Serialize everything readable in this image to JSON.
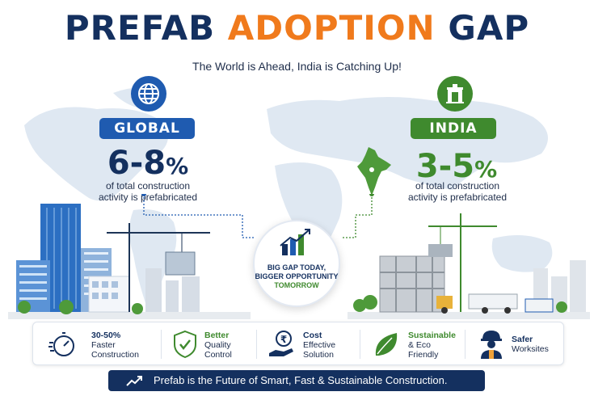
{
  "header": {
    "title_part1": "PREFAB",
    "title_part2": "ADOPTION",
    "title_part3": "GAP",
    "subtitle": "The World is Ahead, India is Catching Up!"
  },
  "global": {
    "label": "GLOBAL",
    "percent": "6-8",
    "percent_sign": "%",
    "desc_line1": "of total construction",
    "desc_line2": "activity is prefabricated",
    "icon": "globe-icon"
  },
  "india": {
    "label": "INDIA",
    "percent": "3-5",
    "percent_sign": "%",
    "desc_line1": "of total construction",
    "desc_line2": "activity is prefabricated",
    "icon": "india-gate-icon"
  },
  "center": {
    "line1": "BIG GAP TODAY,",
    "line2": "BIGGER OPPORTUNITY",
    "line3": "TOMORROW",
    "icon": "growth-chart-icon"
  },
  "features": [
    {
      "line1": "30-50%",
      "line2": "Faster",
      "line3": "Construction",
      "icon": "stopwatch-icon"
    },
    {
      "line1": "Better",
      "line2": "Quality",
      "line3": "Control",
      "icon": "shield-check-icon"
    },
    {
      "line1": "Cost",
      "line2": "Effective",
      "line3": "Solution",
      "icon": "rupee-hand-icon"
    },
    {
      "line1": "Sustainable",
      "line2": "& Eco",
      "line3": "Friendly",
      "icon": "leaf-icon"
    },
    {
      "line1": "Safer",
      "line2": "Worksites",
      "line3": "",
      "icon": "worker-icon"
    }
  ],
  "footer": {
    "text": "Prefab is the Future of Smart, Fast & Sustainable Construction.",
    "icon": "trend-arrow-icon"
  },
  "colors": {
    "navy": "#14305f",
    "orange": "#f07a1c",
    "blue": "#1f5bb0",
    "green": "#3f8a2e"
  }
}
